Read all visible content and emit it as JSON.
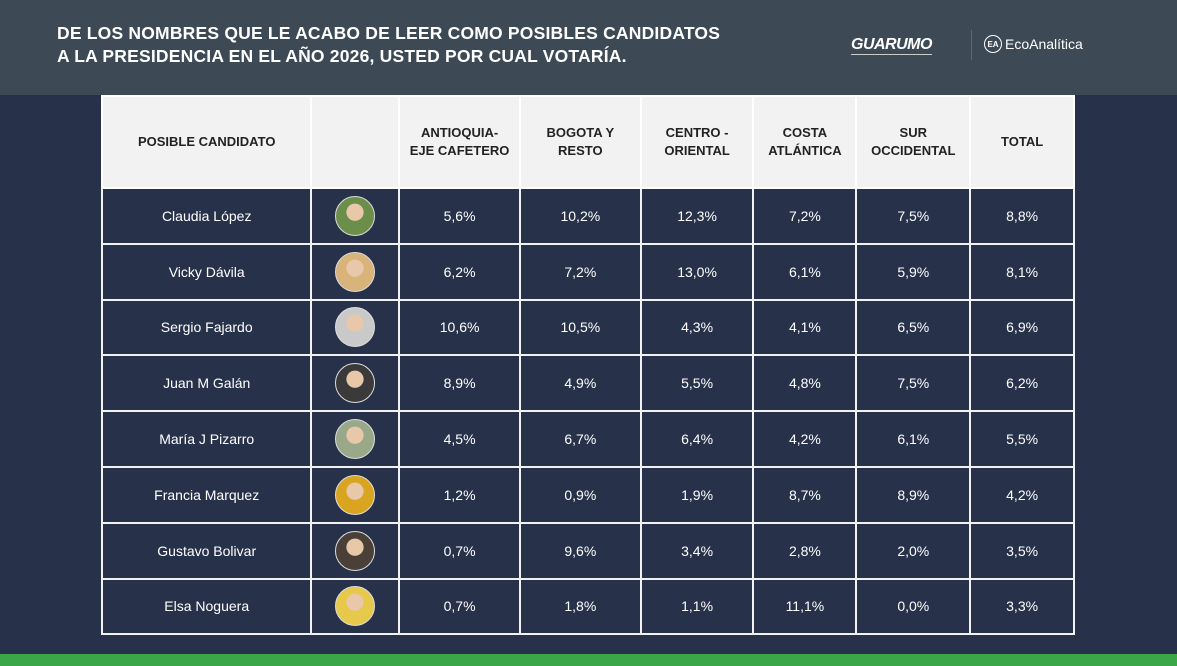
{
  "header": {
    "title_line1": "DE LOS NOMBRES QUE LE ACABO DE LEER COMO POSIBLES CANDIDATOS",
    "title_line2": "A LA PRESIDENCIA EN EL AÑO 2026, USTED POR CUAL VOTARÍA.",
    "logo_guarumo": "GUARUMO",
    "logo_eco": "EcoAnalítica",
    "logo_eco_mark": "EA"
  },
  "table": {
    "columns": [
      "POSIBLE CANDIDATO",
      "",
      "ANTIOQUIA-\nEJE CAFETERO",
      "BOGOTA Y\nRESTO",
      "CENTRO -\nORIENTAL",
      "COSTA\nATLÁNTICA",
      "SUR\nOCCIDENTAL",
      "TOTAL"
    ],
    "rows": [
      {
        "name": "Claudia López",
        "values": [
          "5,6%",
          "10,2%",
          "12,3%",
          "7,2%",
          "7,5%",
          "8,8%"
        ],
        "photo_color": "#6b8f4a"
      },
      {
        "name": "Vicky Dávila",
        "values": [
          "6,2%",
          "7,2%",
          "13,0%",
          "6,1%",
          "5,9%",
          "8,1%"
        ],
        "photo_color": "#d8b37a"
      },
      {
        "name": "Sergio Fajardo",
        "values": [
          "10,6%",
          "10,5%",
          "4,3%",
          "4,1%",
          "6,5%",
          "6,9%"
        ],
        "photo_color": "#c9c9c9"
      },
      {
        "name": "Juan M Galán",
        "values": [
          "8,9%",
          "4,9%",
          "5,5%",
          "4,8%",
          "7,5%",
          "6,2%"
        ],
        "photo_color": "#3a3a3a"
      },
      {
        "name": "María J Pizarro",
        "values": [
          "4,5%",
          "6,7%",
          "6,4%",
          "4,2%",
          "6,1%",
          "5,5%"
        ],
        "photo_color": "#9aa88a"
      },
      {
        "name": "Francia Marquez",
        "values": [
          "1,2%",
          "0,9%",
          "1,9%",
          "8,7%",
          "8,9%",
          "4,2%"
        ],
        "photo_color": "#d9a520"
      },
      {
        "name": "Gustavo Bolivar",
        "values": [
          "0,7%",
          "9,6%",
          "3,4%",
          "2,8%",
          "2,0%",
          "3,5%"
        ],
        "photo_color": "#4a4038"
      },
      {
        "name": "Elsa Noguera",
        "values": [
          "0,7%",
          "1,8%",
          "1,1%",
          "11,1%",
          "0,0%",
          "3,3%"
        ],
        "photo_color": "#e6c84a"
      }
    ]
  },
  "colors": {
    "header_band": "#3d4a55",
    "background": "#27324a",
    "footer": "#3aa648"
  }
}
